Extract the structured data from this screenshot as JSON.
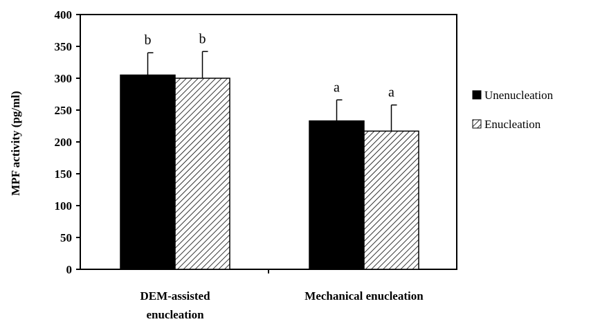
{
  "chart_data": {
    "type": "bar",
    "title": "",
    "xlabel": "",
    "ylabel": "MPF activity (pg/ml)",
    "ylim": [
      0,
      400
    ],
    "yticks": [
      0,
      50,
      100,
      150,
      200,
      250,
      300,
      350,
      400
    ],
    "categories": [
      [
        "DEM-assisted",
        "enucleation"
      ],
      [
        "Mechanical enucleation"
      ]
    ],
    "series": [
      {
        "name": "Unenucleation",
        "fill": "solid",
        "color": "#000000",
        "values": [
          305,
          233
        ],
        "errors": [
          35,
          33
        ],
        "sig_labels": [
          "b",
          "a"
        ]
      },
      {
        "name": "Enucleation",
        "fill": "hatched",
        "color": "#000000",
        "values": [
          300,
          217
        ],
        "errors": [
          42,
          41
        ],
        "sig_labels": [
          "b",
          "a"
        ]
      }
    ],
    "legend_position": "right",
    "grid": false
  }
}
